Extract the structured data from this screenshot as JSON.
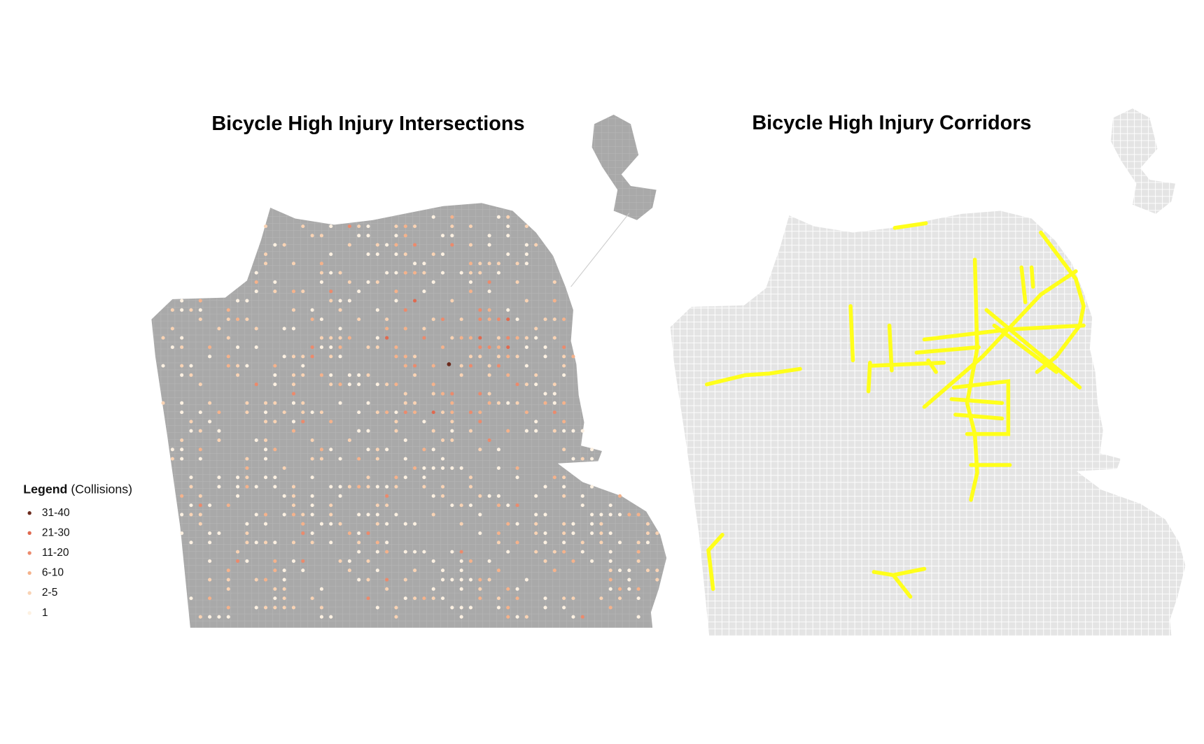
{
  "left_map": {
    "title": "Bicycle High Injury Intersections"
  },
  "right_map": {
    "title": "Bicycle High Injury Corridors"
  },
  "legend": {
    "title": "Legend",
    "subtitle": "(Collisions)",
    "items": [
      {
        "label": "31-40",
        "color": "#6b2a1c"
      },
      {
        "label": "21-30",
        "color": "#e0694f"
      },
      {
        "label": "11-20",
        "color": "#ec8a6c"
      },
      {
        "label": "6-10",
        "color": "#f5b28b"
      },
      {
        "label": "2-5",
        "color": "#f9d3b4"
      },
      {
        "label": "1",
        "color": "#fdf1e2"
      }
    ]
  }
}
